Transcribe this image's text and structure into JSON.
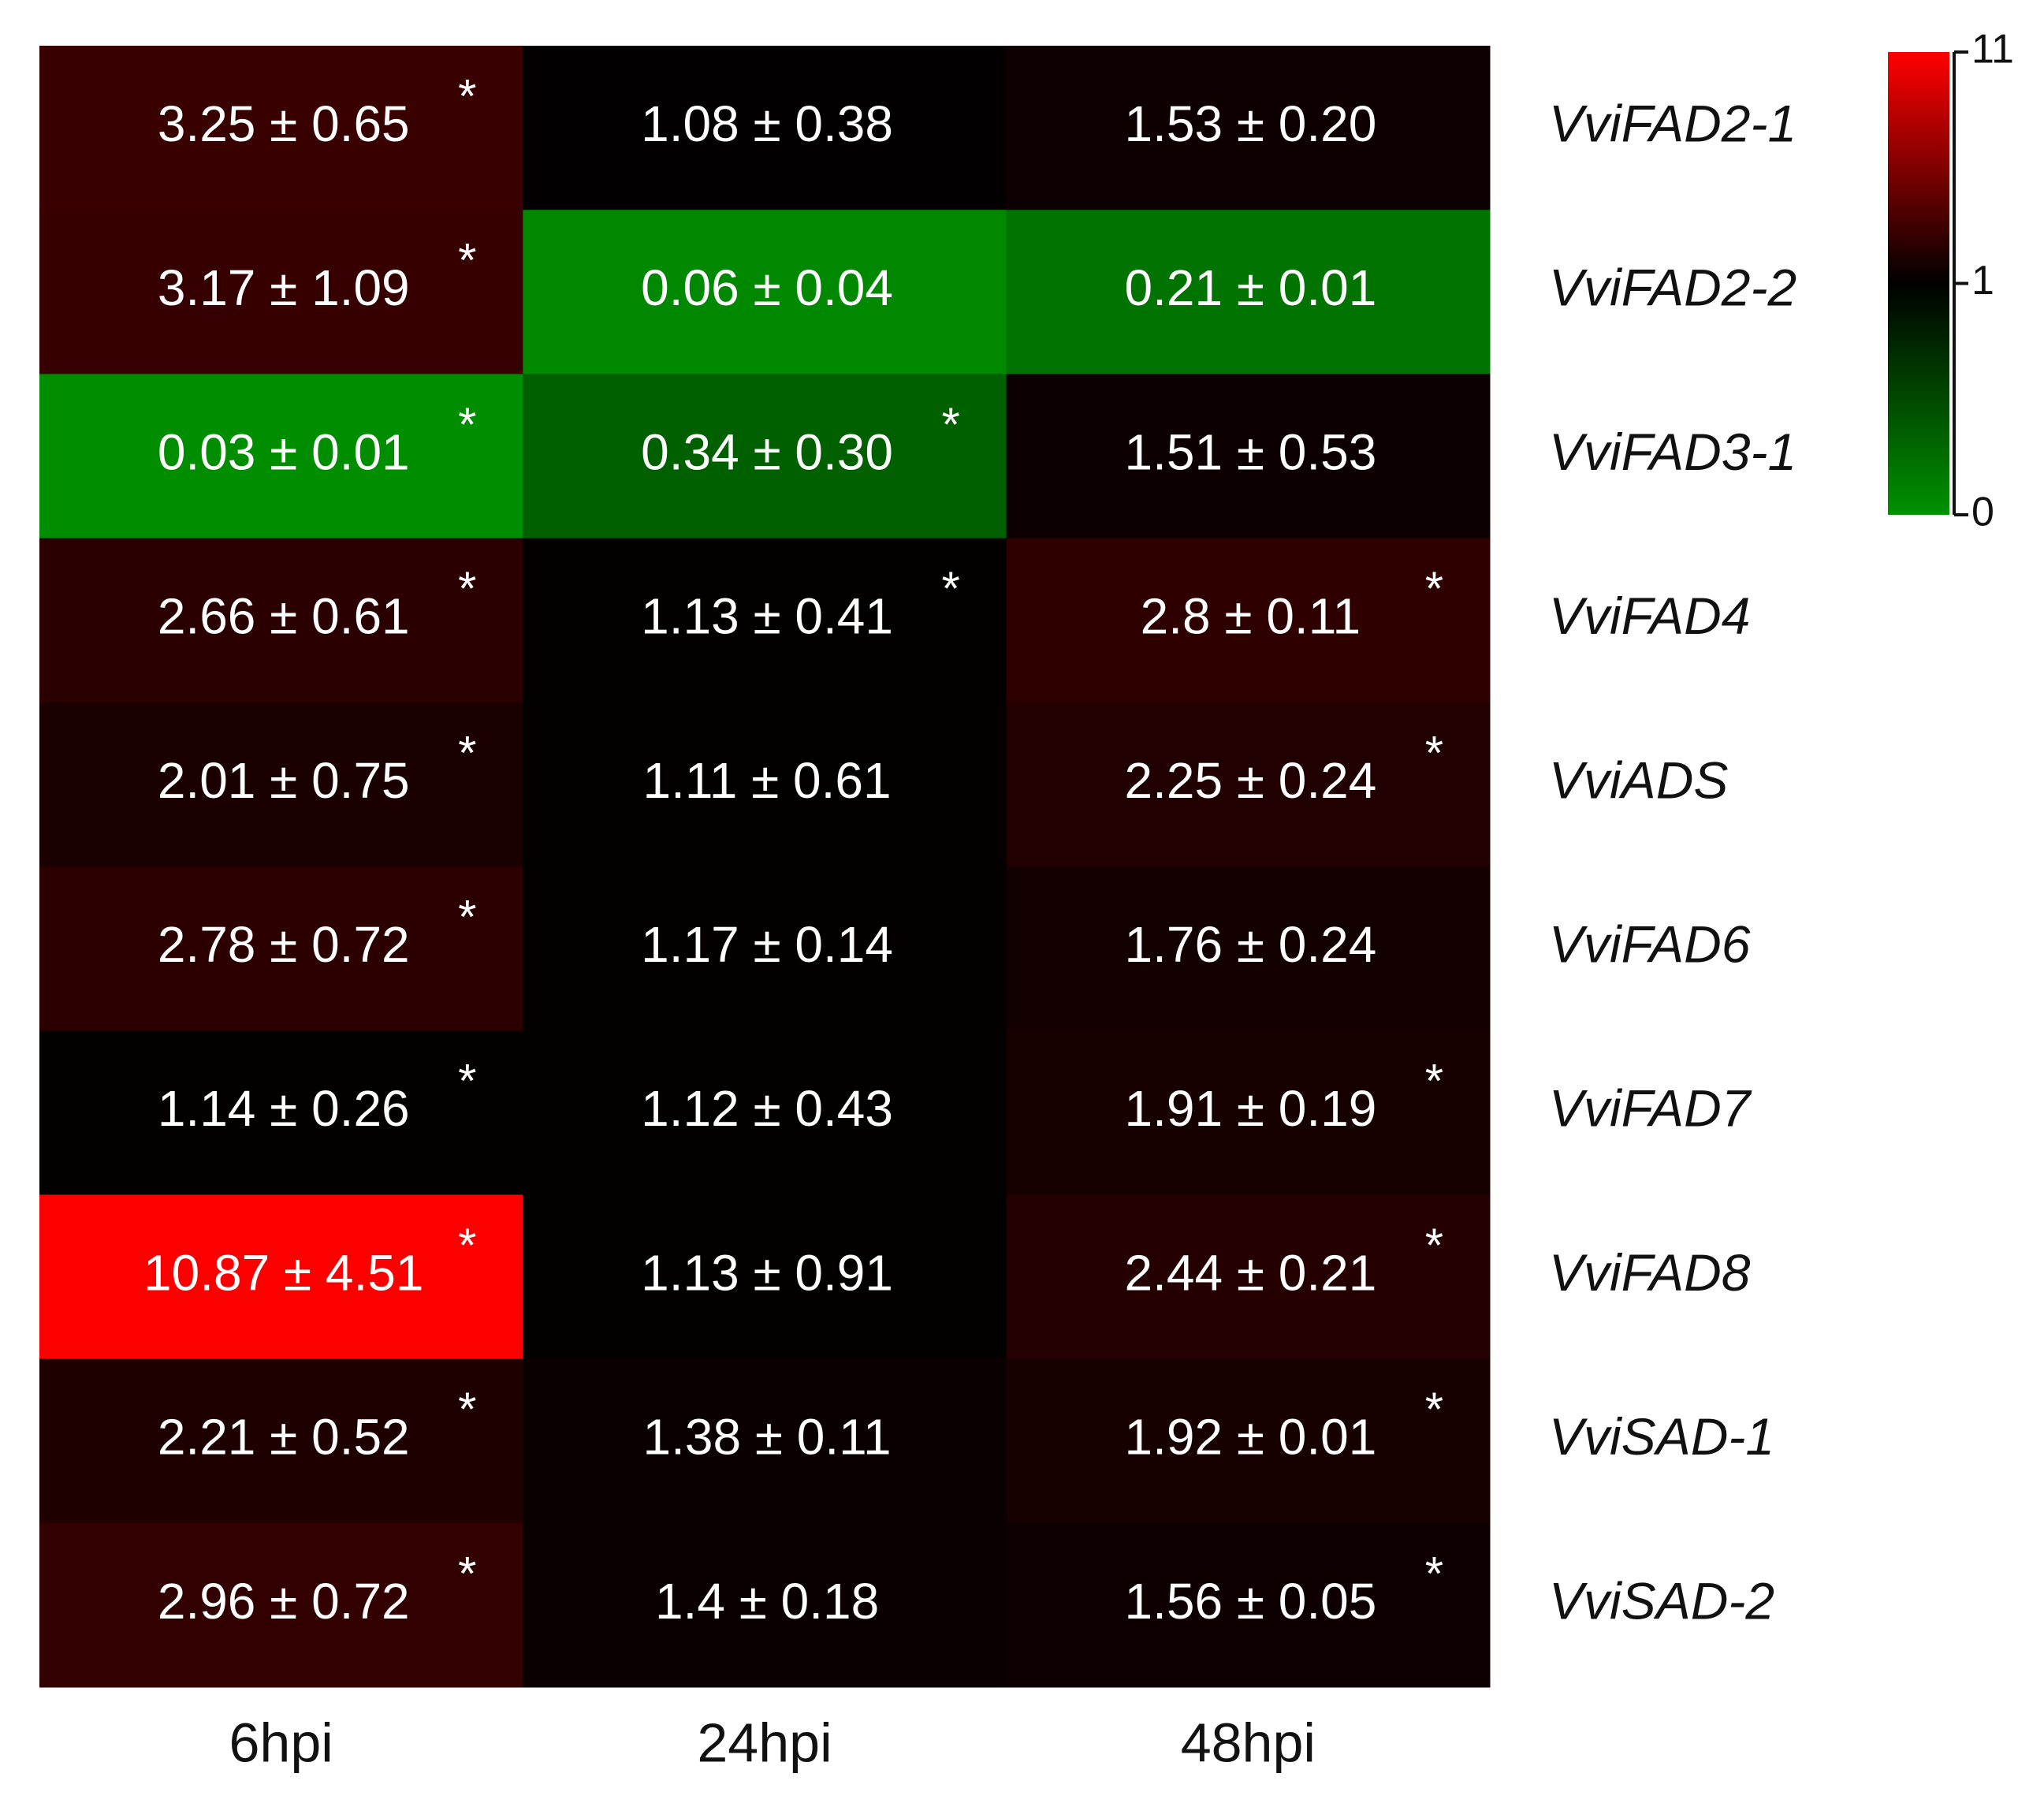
{
  "chart_data": {
    "type": "heatmap",
    "rows": [
      "VviFAD2-1",
      "VviFAD2-2",
      "VviFAD3-1",
      "VviFAD4",
      "VviADS",
      "VviFAD6",
      "VviFAD7",
      "VviFAD8",
      "VviSAD-1",
      "VviSAD-2"
    ],
    "columns": [
      "6hpi",
      "24hpi",
      "48hpi"
    ],
    "values": [
      [
        3.25,
        1.08,
        1.53
      ],
      [
        3.17,
        0.06,
        0.21
      ],
      [
        0.03,
        0.34,
        1.51
      ],
      [
        2.66,
        1.13,
        2.8
      ],
      [
        2.01,
        1.11,
        2.25
      ],
      [
        2.78,
        1.17,
        1.76
      ],
      [
        1.14,
        1.12,
        1.91
      ],
      [
        10.87,
        1.13,
        2.44
      ],
      [
        2.21,
        1.38,
        1.92
      ],
      [
        2.96,
        1.4,
        1.56
      ]
    ],
    "errors": [
      [
        0.65,
        0.38,
        0.2
      ],
      [
        1.09,
        0.04,
        0.01
      ],
      [
        0.01,
        0.3,
        0.53
      ],
      [
        0.61,
        0.41,
        0.11
      ],
      [
        0.75,
        0.61,
        0.24
      ],
      [
        0.72,
        0.14,
        0.24
      ],
      [
        0.26,
        0.43,
        0.19
      ],
      [
        4.51,
        0.91,
        0.21
      ],
      [
        0.52,
        0.11,
        0.01
      ],
      [
        0.72,
        0.18,
        0.05
      ]
    ],
    "value_labels": [
      [
        "3.25 ± 0.65",
        "1.08 ± 0.38",
        "1.53 ± 0.20"
      ],
      [
        "3.17 ± 1.09",
        "0.06 ± 0.04",
        "0.21 ± 0.01"
      ],
      [
        "0.03 ± 0.01",
        "0.34 ± 0.30",
        "1.51 ± 0.53"
      ],
      [
        "2.66 ± 0.61",
        "1.13 ± 0.41",
        "2.8 ± 0.11"
      ],
      [
        "2.01 ± 0.75",
        "1.11 ± 0.61",
        "2.25 ± 0.24"
      ],
      [
        "2.78 ± 0.72",
        "1.17 ± 0.14",
        "1.76 ± 0.24"
      ],
      [
        "1.14 ± 0.26",
        "1.12 ± 0.43",
        "1.91 ± 0.19"
      ],
      [
        "10.87 ± 4.51",
        "1.13 ± 0.91",
        "2.44 ± 0.21"
      ],
      [
        "2.21 ± 0.52",
        "1.38 ± 0.11",
        "1.92 ± 0.01"
      ],
      [
        "2.96 ± 0.72",
        "1.4 ± 0.18",
        "1.56 ± 0.05"
      ]
    ],
    "significance_marker": "*",
    "significant": [
      [
        true,
        false,
        false
      ],
      [
        true,
        false,
        false
      ],
      [
        true,
        true,
        false
      ],
      [
        true,
        true,
        true
      ],
      [
        true,
        false,
        true
      ],
      [
        true,
        false,
        false
      ],
      [
        true,
        false,
        true
      ],
      [
        true,
        false,
        true
      ],
      [
        true,
        false,
        true
      ],
      [
        true,
        false,
        true
      ]
    ],
    "color_stops": [
      0,
      1,
      11
    ],
    "colors": [
      "#009200",
      "#000000",
      "#ff0000"
    ],
    "colorbar_ticks": [
      0,
      1,
      11
    ]
  }
}
